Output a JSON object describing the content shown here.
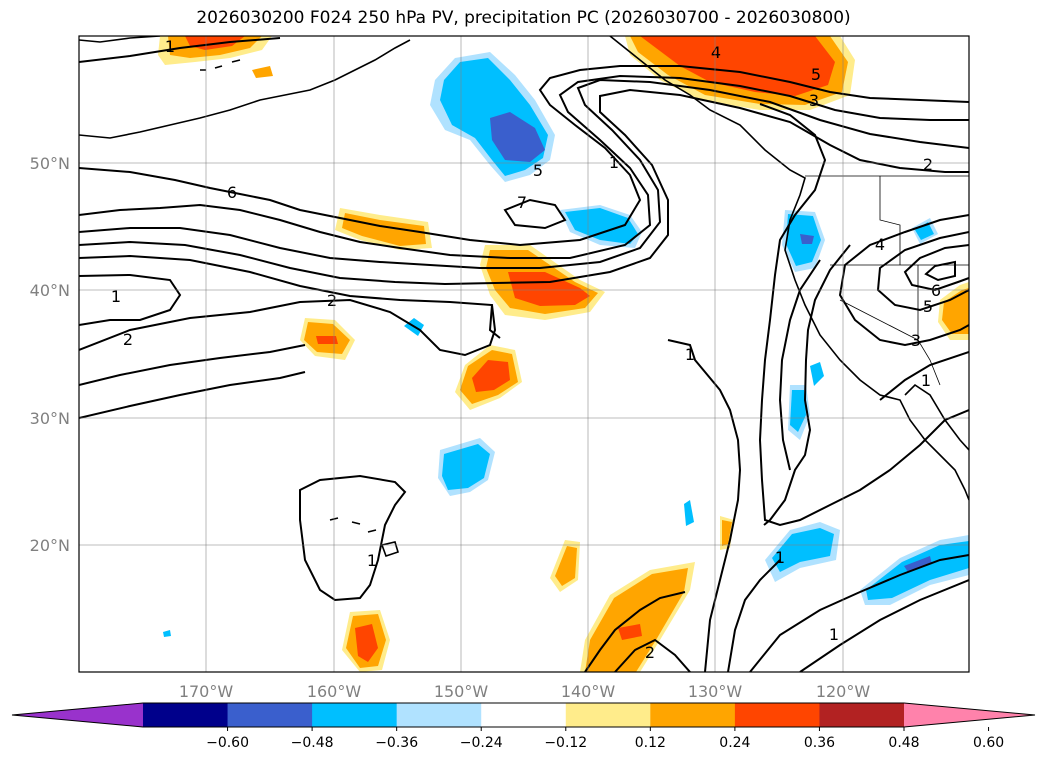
{
  "figure": {
    "title": "2026030200 F024 250 hPa PV, precipitation PC (2026030700 - 2026030800)"
  },
  "axes": {
    "lon_ticks": [
      "170°W",
      "160°W",
      "150°W",
      "140°W",
      "130°W",
      "120°W"
    ],
    "lat_ticks": [
      "50°N",
      "40°N",
      "30°N",
      "20°N"
    ]
  },
  "colorbar": {
    "tick_labels": [
      "−0.60",
      "−0.48",
      "−0.36",
      "−0.24",
      "−0.12",
      "0.12",
      "0.24",
      "0.36",
      "0.48",
      "0.60"
    ],
    "colors": [
      "#9932cc",
      "#00008b",
      "#3a5fcd",
      "#00bfff",
      "#b0e2ff",
      "#ffffff",
      "#ffec8b",
      "#ffa500",
      "#ff4500",
      "#b22222",
      "#ff82ab"
    ]
  },
  "chart_data": {
    "type": "map-contour",
    "title": "2026030200 F024 250 hPa PV, precipitation PC (2026030700 - 2026030800)",
    "field_contour": "250 hPa PV",
    "field_shaded": "precipitation PC",
    "lon_range": [
      -180,
      -110
    ],
    "lat_range": [
      10,
      60
    ],
    "contour_labels": [
      "1",
      "2",
      "3",
      "4",
      "5",
      "6",
      "7"
    ],
    "shading_levels": [
      -0.6,
      -0.48,
      -0.36,
      -0.24,
      -0.12,
      0.12,
      0.24,
      0.36,
      0.48,
      0.6
    ]
  }
}
